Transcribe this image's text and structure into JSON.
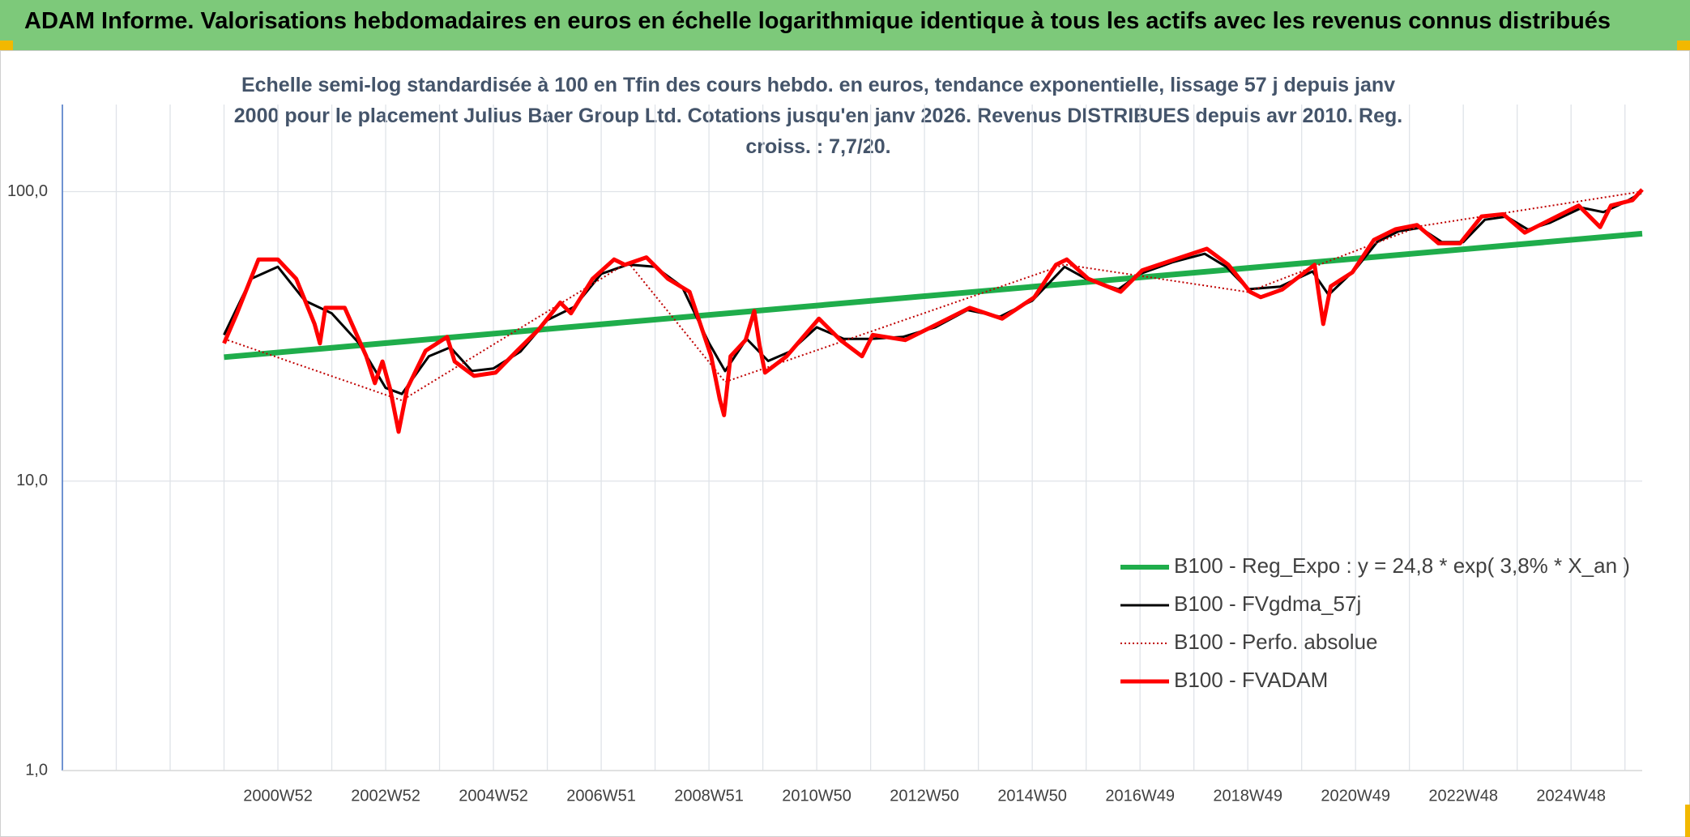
{
  "chart_data": {
    "type": "line",
    "header": "ADAM Informe. Valorisations hebdomadaires en euros en échelle logarithmique identique à tous les actifs avec les revenus connus distribués",
    "title": "Echelle semi-log standardisée à 100 en Tfin des cours hebdo. en euros, tendance exponentielle, lissage 57 j depuis janv 2000 pour le placement Julius Baer Group Ltd. Cotations jusqu'en janv 2026. Revenus DISTRIBUES depuis avr 2010. Reg. croiss. : 7,7/20.",
    "log_y": true,
    "grid": true,
    "legend": "lower right",
    "xlim": [
      1997.0,
      2026.32
    ],
    "xticks": [
      {
        "value": 2001.0,
        "label": "2000W52"
      },
      {
        "value": 2003.0,
        "label": "2002W52"
      },
      {
        "value": 2005.0,
        "label": "2004W52"
      },
      {
        "value": 2007.0,
        "label": "2006W51"
      },
      {
        "value": 2009.0,
        "label": "2008W51"
      },
      {
        "value": 2011.0,
        "label": "2010W50"
      },
      {
        "value": 2013.0,
        "label": "2012W50"
      },
      {
        "value": 2015.0,
        "label": "2014W50"
      },
      {
        "value": 2017.0,
        "label": "2016W49"
      },
      {
        "value": 2019.0,
        "label": "2018W49"
      },
      {
        "value": 2021.0,
        "label": "2020W49"
      },
      {
        "value": 2023.0,
        "label": "2022W48"
      },
      {
        "value": 2025.0,
        "label": "2024W48"
      }
    ],
    "ylim": [
      1,
      200
    ],
    "yticks": [
      {
        "value": 1,
        "label": "1,0"
      },
      {
        "value": 10,
        "label": "10,0"
      },
      {
        "value": 100,
        "label": "100,0"
      }
    ],
    "series": [
      {
        "name": "B100 - Reg_Expo : y = 24,8 * exp( 3,8% *  X_an )",
        "color": "#1fad4b",
        "style": "solid",
        "width": 7,
        "x": [
          2000.0,
          2026.32
        ],
        "values": [
          26.8,
          71.6
        ]
      },
      {
        "name": "B100 - FVgdma_57j",
        "color": "#000000",
        "style": "solid",
        "width": 3,
        "x": [
          2000.0,
          2000.5,
          2001.0,
          2001.5,
          2002.0,
          2002.5,
          2003.0,
          2003.3,
          2003.8,
          2004.2,
          2004.6,
          2005.0,
          2005.5,
          2006.0,
          2006.5,
          2007.0,
          2007.5,
          2008.0,
          2008.5,
          2009.0,
          2009.3,
          2009.7,
          2010.1,
          2010.5,
          2011.0,
          2011.5,
          2012.0,
          2012.6,
          2013.2,
          2013.8,
          2014.4,
          2015.0,
          2015.6,
          2016.0,
          2016.6,
          2017.0,
          2017.6,
          2018.2,
          2018.6,
          2019.0,
          2019.6,
          2020.2,
          2020.5,
          2021.0,
          2021.4,
          2021.8,
          2022.2,
          2022.6,
          2023.0,
          2023.4,
          2023.8,
          2024.2,
          2024.6,
          2025.2,
          2025.6,
          2026.0,
          2026.3
        ],
        "values": [
          32,
          50,
          55,
          42,
          38,
          30,
          21,
          20,
          27,
          29,
          24,
          24.5,
          28,
          36,
          40,
          52,
          56,
          55,
          47,
          30,
          24,
          31,
          26,
          28,
          34,
          31,
          31,
          31.5,
          34,
          39,
          37,
          42,
          55,
          50,
          46,
          52,
          57,
          61,
          55,
          46,
          47,
          53,
          44,
          54,
          67,
          73,
          75,
          67,
          67,
          80,
          82,
          74,
          78,
          88,
          85,
          92,
          99
        ]
      },
      {
        "name": "B100 - Perfo. absolue",
        "color": "#c00000",
        "style": "dotted",
        "width": 2,
        "x": [
          2000.0,
          2003.3,
          2007.5,
          2009.3,
          2015.6,
          2019.0,
          2022.2,
          2026.3
        ],
        "values": [
          31,
          19,
          57,
          22,
          56,
          45,
          76,
          100
        ]
      },
      {
        "name": "B100 - FVADAM",
        "color": "#ff0000",
        "style": "solid",
        "width": 5,
        "x": [
          2000.0,
          2000.24,
          2000.64,
          2001.0,
          2001.34,
          2001.68,
          2001.78,
          2001.88,
          2002.24,
          2002.64,
          2002.8,
          2002.94,
          2003.08,
          2003.24,
          2003.4,
          2003.74,
          2004.14,
          2004.28,
          2004.64,
          2005.04,
          2005.44,
          2005.84,
          2006.24,
          2006.44,
          2006.84,
          2007.24,
          2007.44,
          2007.84,
          2008.24,
          2008.64,
          2008.84,
          2009.04,
          2009.2,
          2009.28,
          2009.4,
          2009.68,
          2009.84,
          2009.94,
          2010.04,
          2010.44,
          2011.04,
          2011.44,
          2011.84,
          2012.04,
          2012.64,
          2013.24,
          2013.84,
          2014.44,
          2015.04,
          2015.44,
          2015.64,
          2016.04,
          2016.64,
          2017.04,
          2017.64,
          2018.24,
          2018.64,
          2019.04,
          2019.24,
          2019.64,
          2020.24,
          2020.4,
          2020.54,
          2020.94,
          2021.34,
          2021.74,
          2022.14,
          2022.54,
          2022.94,
          2023.34,
          2023.74,
          2024.14,
          2024.54,
          2025.14,
          2025.54,
          2025.74,
          2026.14,
          2026.32
        ],
        "values": [
          29.9,
          38.0,
          58.3,
          58.3,
          50.0,
          34.9,
          29.9,
          39.7,
          39.7,
          27.0,
          21.8,
          25.9,
          20.9,
          14.8,
          20.9,
          28.2,
          31.5,
          25.9,
          23.1,
          23.7,
          28.2,
          33.4,
          41.4,
          38.0,
          50.0,
          58.3,
          55.9,
          59.3,
          50.0,
          45.1,
          34.9,
          27.0,
          19.2,
          16.9,
          27.0,
          30.7,
          38.7,
          29.4,
          23.7,
          27.0,
          36.4,
          30.7,
          27.0,
          32.0,
          30.7,
          34.9,
          39.7,
          36.4,
          43.2,
          55.9,
          58.3,
          50.0,
          45.1,
          53.5,
          58.3,
          63.5,
          55.9,
          45.1,
          43.2,
          45.9,
          55.9,
          34.9,
          47.1,
          52.6,
          68.1,
          74.1,
          76.7,
          66.3,
          66.3,
          82.1,
          83.6,
          72.2,
          78.7,
          89.5,
          75.4,
          89.5,
          93.4,
          101.7
        ]
      }
    ]
  }
}
